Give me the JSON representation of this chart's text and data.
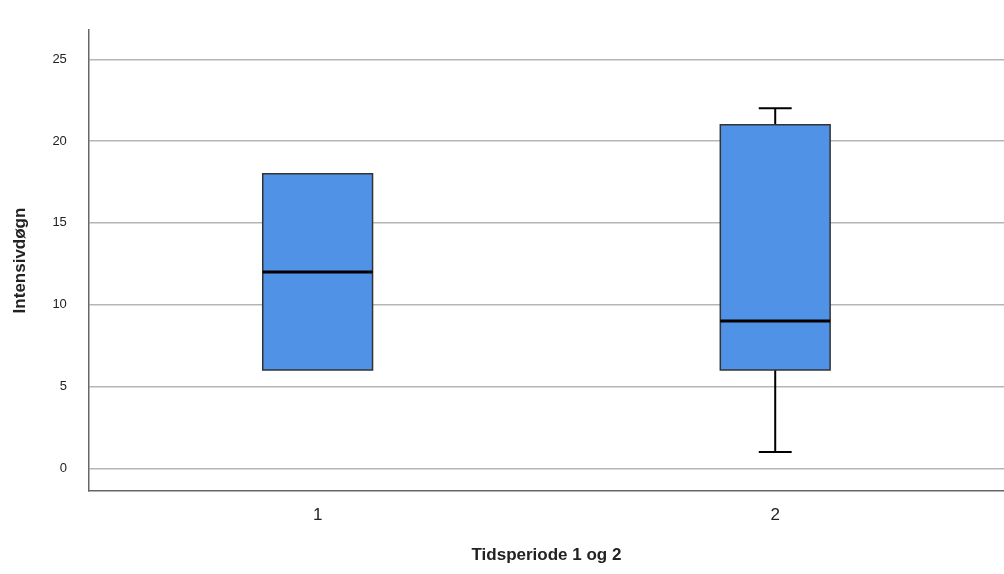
{
  "chart_data": {
    "type": "box",
    "xlabel": "Tidsperiode 1 og 2",
    "ylabel": "Intensivdøgn",
    "categories": [
      "1",
      "2"
    ],
    "series": [
      {
        "color": "#5093e6",
        "boxes": [
          {
            "low": 6,
            "q1": 6,
            "median": 12,
            "q3": 18,
            "high": 18
          },
          {
            "low": 1,
            "q1": 6,
            "median": 9,
            "q3": 21,
            "high": 22
          }
        ]
      }
    ],
    "ylim": [
      -1.4,
      26.8
    ],
    "yticks": [
      0,
      5,
      10,
      15,
      20,
      25
    ],
    "grid": "y",
    "legend": false
  }
}
